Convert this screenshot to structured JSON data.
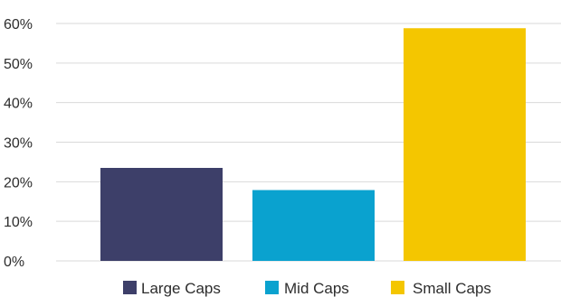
{
  "chart_data": {
    "type": "bar",
    "categories": [
      "Large Caps",
      "Mid Caps",
      "Small Caps"
    ],
    "series": [
      {
        "name": "Large Caps",
        "value": 23.5,
        "color": "#3d3f69"
      },
      {
        "name": "Mid Caps",
        "value": 17.9,
        "color": "#0aa2cf"
      },
      {
        "name": "Small Caps",
        "value": 58.8,
        "color": "#f4c600"
      }
    ],
    "y_ticks": [
      "0%",
      "10%",
      "20%",
      "30%",
      "40%",
      "50%",
      "60%"
    ],
    "ylim": [
      0,
      60
    ],
    "grid": true,
    "legend_position": "bottom-center",
    "title": "",
    "xlabel": "",
    "ylabel": ""
  }
}
